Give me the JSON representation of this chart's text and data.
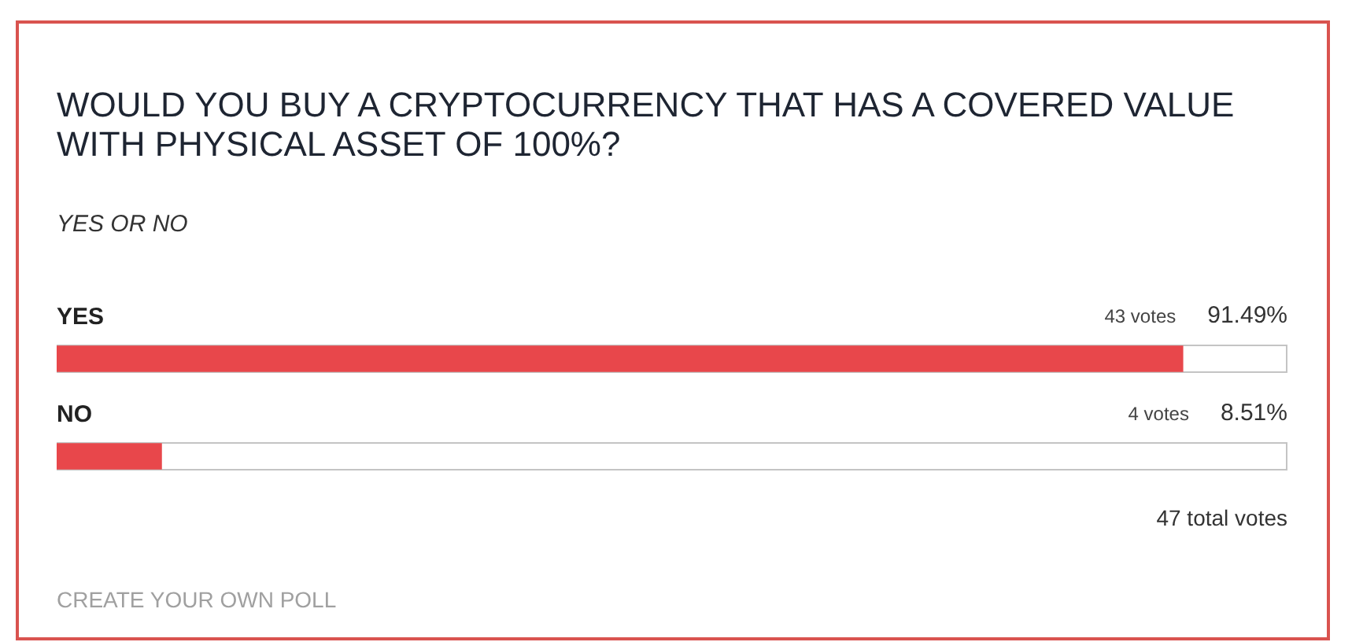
{
  "chart_data": {
    "type": "bar",
    "orientation": "horizontal",
    "title": "WOULD YOU BUY A CRYPTOCURRENCY THAT HAS A COVERED VALUE WITH PHYSICAL ASSET OF 100%?",
    "subtitle": "YES OR NO",
    "categories": [
      "YES",
      "NO"
    ],
    "values": [
      91.49,
      8.51
    ],
    "color": "#e8474b",
    "xlim": [
      0,
      100
    ],
    "tick_labels": "y",
    "value_labels": [
      "91.49%",
      "8.51%"
    ],
    "annotations": [
      "43 votes",
      "4 votes",
      "47 total votes",
      "CREATE YOUR OWN POLL"
    ]
  }
}
